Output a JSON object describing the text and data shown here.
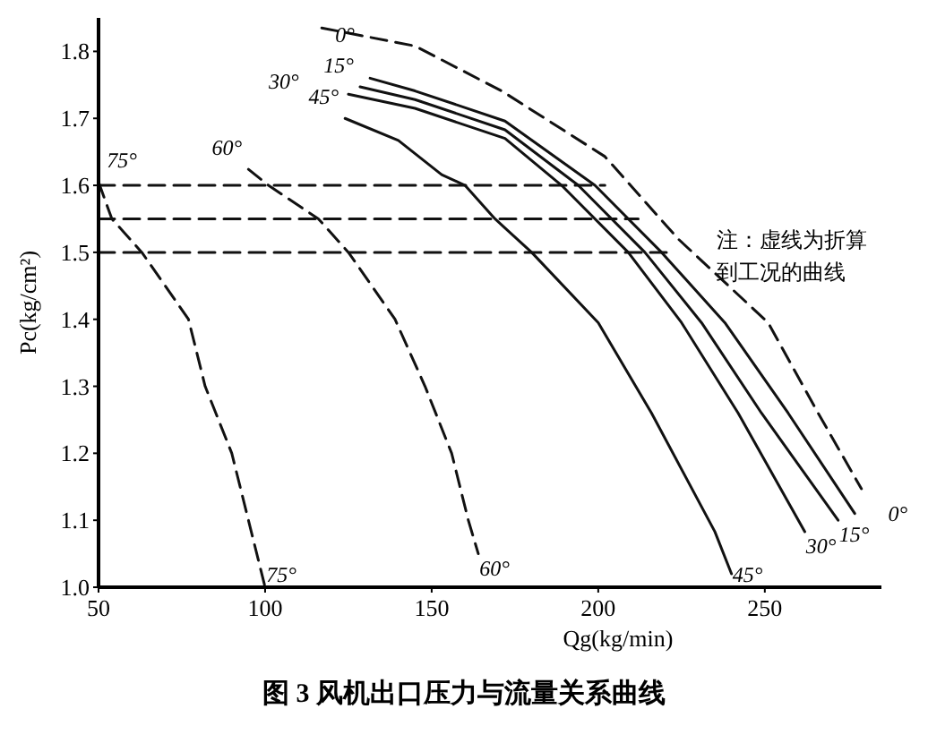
{
  "chart_data": {
    "type": "line",
    "title": "图 3  风机出口压力与流量关系曲线",
    "xlabel": "Qg(kg/min)",
    "ylabel": "Pc(kg/cm²)",
    "xlim": [
      50,
      285
    ],
    "ylim": [
      1.0,
      1.85
    ],
    "xticks": [
      50,
      100,
      150,
      200,
      250
    ],
    "yticks": [
      {
        "value": 1.0,
        "label": "1.0"
      },
      1.1,
      1.2,
      1.3,
      1.4,
      1.5,
      1.6,
      1.7,
      1.8
    ],
    "grid": false,
    "series": [
      {
        "name": "75°",
        "color": "#111111",
        "line_style": "dashed",
        "x": [
          50,
          54,
          63,
          77,
          82,
          90,
          95,
          100
        ],
        "values": [
          1.605,
          1.55,
          1.5,
          1.4,
          1.3,
          1.2,
          1.1,
          1.0
        ]
      },
      {
        "name": "60°",
        "color": "#111111",
        "line_style": "dashed",
        "x": [
          95,
          101,
          116,
          125,
          139,
          148,
          156,
          161,
          164
        ],
        "values": [
          1.624,
          1.6,
          1.55,
          1.5,
          1.4,
          1.3,
          1.2,
          1.1,
          1.05
        ]
      },
      {
        "name": "45°",
        "color": "#111111",
        "line_style": "solid",
        "x": [
          124,
          140,
          153,
          160,
          169,
          180,
          200,
          216,
          235,
          240
        ],
        "values": [
          1.7,
          1.667,
          1.616,
          1.6,
          1.55,
          1.5,
          1.395,
          1.26,
          1.083,
          1.02
        ]
      },
      {
        "name": "30°",
        "color": "#111111",
        "line_style": "solid",
        "x": [
          125,
          145,
          172,
          189,
          209,
          225,
          242,
          262
        ],
        "values": [
          1.736,
          1.715,
          1.67,
          1.6,
          1.5,
          1.395,
          1.26,
          1.083
        ]
      },
      {
        "name": "15°",
        "color": "#111111",
        "line_style": "solid",
        "x": [
          128.5,
          145,
          172,
          194,
          214,
          231,
          249,
          272
        ],
        "values": [
          1.747,
          1.728,
          1.683,
          1.6,
          1.5,
          1.395,
          1.26,
          1.1
        ]
      },
      {
        "name": "0°",
        "color": "#111111",
        "line_style": "solid",
        "x": [
          131.5,
          145,
          172,
          199,
          219,
          238,
          257,
          277
        ],
        "values": [
          1.76,
          1.741,
          1.696,
          1.6,
          1.5,
          1.395,
          1.26,
          1.11
        ]
      },
      {
        "color": "#111111",
        "line_style": "dashed",
        "x": [
          117,
          145,
          171,
          202,
          224,
          251,
          266,
          279
        ],
        "values": [
          1.835,
          1.808,
          1.741,
          1.643,
          1.52,
          1.395,
          1.26,
          1.147
        ]
      },
      {
        "color": "#111111",
        "line_style": "dashed",
        "x": [
          50,
          202
        ],
        "values": [
          1.6,
          1.6
        ]
      },
      {
        "color": "#111111",
        "line_style": "dashed",
        "x": [
          50,
          212
        ],
        "values": [
          1.55,
          1.55
        ]
      },
      {
        "color": "#111111",
        "line_style": "dashed",
        "x": [
          50,
          222
        ],
        "values": [
          1.5,
          1.5
        ]
      }
    ],
    "annotations": [
      "注：虚线为折算",
      "到工况的曲线"
    ]
  }
}
